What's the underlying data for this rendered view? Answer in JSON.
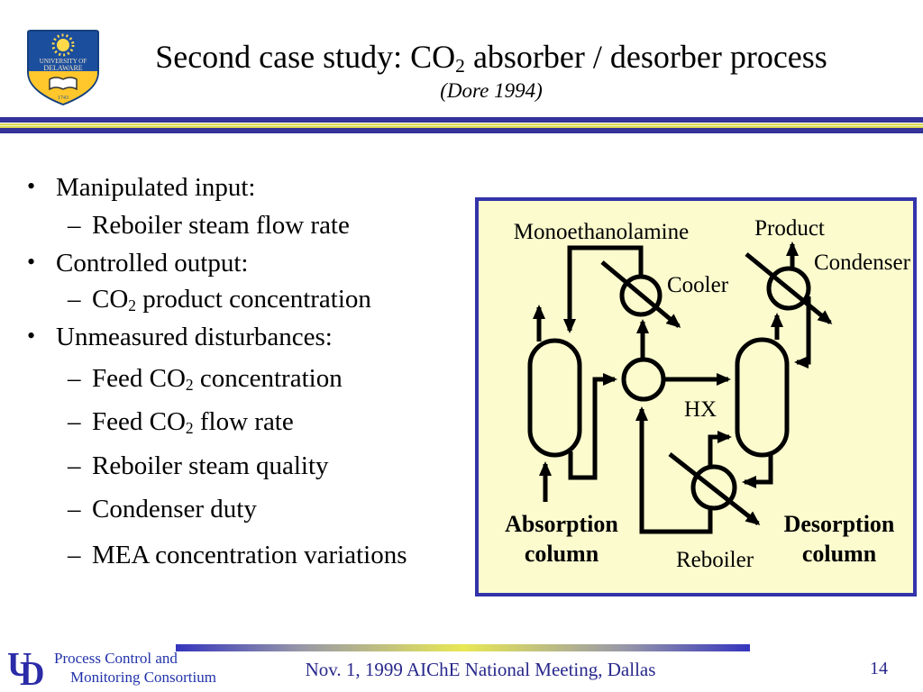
{
  "slide_title": {
    "segments": [
      {
        "t": "Second case study: CO"
      },
      {
        "sub": "2"
      },
      {
        "t": " absorber / desorber process"
      }
    ],
    "subtitle": "(Dore 1994)"
  },
  "university_logo": {
    "line1": "UNIVERSITY OF",
    "line2": "DELAWARE",
    "year": "1743"
  },
  "bullet_glyphs": {
    "level1": "•",
    "level2": "–"
  },
  "bullets": [
    {
      "level": 1,
      "segments": [
        {
          "t": "Manipulated input:"
        }
      ]
    },
    {
      "level": 2,
      "segments": [
        {
          "t": "Reboiler steam flow rate"
        }
      ]
    },
    {
      "level": 1,
      "segments": [
        {
          "t": "Controlled output:"
        }
      ]
    },
    {
      "level": 2,
      "segments": [
        {
          "t": "CO"
        },
        {
          "sub": "2"
        },
        {
          "t": " product concentration"
        }
      ]
    },
    {
      "level": 1,
      "segments": [
        {
          "t": "Unmeasured disturbances:"
        }
      ]
    },
    {
      "level": 2,
      "segments": [
        {
          "t": "Feed CO"
        },
        {
          "sub": "2"
        },
        {
          "t": " concentration"
        }
      ]
    },
    {
      "level": 2,
      "segments": [
        {
          "t": "Feed CO"
        },
        {
          "sub": "2"
        },
        {
          "t": " flow rate"
        }
      ]
    },
    {
      "level": 2,
      "segments": [
        {
          "t": "Reboiler steam quality"
        }
      ]
    },
    {
      "level": 2,
      "segments": [
        {
          "t": "Condenser duty"
        }
      ]
    },
    {
      "level": 2,
      "segments": [
        {
          "t": "MEA concentration variations"
        }
      ]
    }
  ],
  "diagram": {
    "labels": {
      "monoethanolamine": "Monoethanolamine",
      "product": "Product",
      "condenser": "Condenser",
      "cooler": "Cooler",
      "hx": "HX",
      "reboiler": "Reboiler",
      "absorption_column_line1": "Absorption",
      "absorption_column_line2": "column",
      "desorption_column_line1": "Desorption",
      "desorption_column_line2": "column"
    },
    "colors": {
      "panel_background": "#FBFBCE",
      "panel_border": "#3333AA",
      "line_color": "#000000"
    }
  },
  "footer": {
    "monogram_u": "U",
    "monogram_d": "D",
    "consortium_line1": "Process Control and",
    "consortium_line2": "Monitoring Consortium",
    "conference": "Nov. 1, 1999 AIChE National Meeting, Dallas",
    "page_number": "14"
  },
  "colors": {
    "divider_blue": "#333399",
    "divider_yellow": "#D9D952",
    "footer_text_blue": "#28288C",
    "logo_blue": "#1C4E9E",
    "logo_gold": "#FFC72C"
  }
}
